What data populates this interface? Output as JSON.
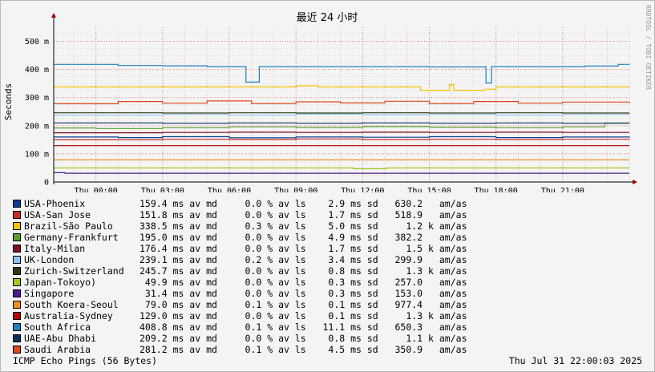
{
  "chart_data": {
    "type": "line",
    "title": "最近 24 小时",
    "ylabel": "Seconds",
    "ylim": [
      0,
      550
    ],
    "yticks": [
      {
        "value": 0,
        "label": "0"
      },
      {
        "value": 100,
        "label": "100 m"
      },
      {
        "value": 200,
        "label": "200 m"
      },
      {
        "value": 300,
        "label": "300 m"
      },
      {
        "value": 400,
        "label": "400 m"
      },
      {
        "value": 500,
        "label": "500 m"
      }
    ],
    "x_range_hours": [
      -1.9,
      24
    ],
    "xticks": [
      {
        "hour": 0,
        "label": "Thu 00:00"
      },
      {
        "hour": 3,
        "label": "Thu 03:00"
      },
      {
        "hour": 6,
        "label": "Thu 06:00"
      },
      {
        "hour": 9,
        "label": "Thu 09:00"
      },
      {
        "hour": 12,
        "label": "Thu 12:00"
      },
      {
        "hour": 15,
        "label": "Thu 15:00"
      },
      {
        "hour": 18,
        "label": "Thu 18:00"
      },
      {
        "hour": 21,
        "label": "Thu 21:00"
      }
    ],
    "grid": true,
    "watermark": "RRDTOOL / TOBI OETIKER",
    "series": [
      {
        "name": "USA-Phoenix",
        "color": "#0b3d91",
        "stats": "159.4 ms av md     0.0 % av ls    2.9 ms sd   630.2   am/as",
        "values": [
          [
            -1.9,
            160
          ],
          [
            1,
            158
          ],
          [
            3,
            161
          ],
          [
            6,
            157
          ],
          [
            9,
            160
          ],
          [
            12,
            159
          ],
          [
            15,
            161
          ],
          [
            18,
            158
          ],
          [
            21,
            160
          ],
          [
            24,
            159
          ]
        ]
      },
      {
        "name": "USA-San Jose",
        "color": "#c92a2a",
        "stats": "151.8 ms av md     0.0 % av ls    1.7 ms sd   518.9   am/as",
        "values": [
          [
            -1.9,
            150
          ],
          [
            3,
            152
          ],
          [
            6,
            151
          ],
          [
            9,
            153
          ],
          [
            12,
            151
          ],
          [
            15,
            152
          ],
          [
            18,
            151
          ],
          [
            21,
            152
          ],
          [
            24,
            151
          ]
        ]
      },
      {
        "name": "Brazil-São Paulo",
        "color": "#f2c200",
        "stats": "338.5 ms av md     0.3 % av ls    5.0 ms sd     1.2 k am/as",
        "values": [
          [
            -1.9,
            338
          ],
          [
            8.5,
            338
          ],
          [
            9,
            342
          ],
          [
            10,
            338
          ],
          [
            14.5,
            338
          ],
          [
            14.6,
            326
          ],
          [
            15.8,
            326
          ],
          [
            15.9,
            346
          ],
          [
            16.1,
            326
          ],
          [
            17.5,
            330
          ],
          [
            18,
            338
          ],
          [
            24,
            338
          ]
        ]
      },
      {
        "name": "Germany-Frankfurt",
        "color": "#5a9e2f",
        "stats": "195.0 ms av md     0.0 % av ls    4.9 ms sd   382.2   am/as",
        "values": [
          [
            -1.9,
            192
          ],
          [
            0,
            190
          ],
          [
            3,
            193
          ],
          [
            6,
            196
          ],
          [
            9,
            194
          ],
          [
            12,
            197
          ],
          [
            15,
            195
          ],
          [
            18,
            193
          ],
          [
            21,
            196
          ],
          [
            22.8,
            196
          ],
          [
            22.9,
            210
          ],
          [
            24,
            208
          ]
        ]
      },
      {
        "name": "Italy-Milan",
        "color": "#7a1020",
        "stats": "176.4 ms av md     0.0 % av ls    1.7 ms sd     1.5 k am/as",
        "values": [
          [
            -1.9,
            175
          ],
          [
            3,
            176
          ],
          [
            6,
            177
          ],
          [
            9,
            176
          ],
          [
            12,
            177
          ],
          [
            15,
            176
          ],
          [
            18,
            177
          ],
          [
            21,
            176
          ],
          [
            24,
            176
          ]
        ]
      },
      {
        "name": "UK-London",
        "color": "#8ec5ef",
        "stats": "239.1 ms av md     0.2 % av ls    3.4 ms sd   299.9   am/as",
        "values": [
          [
            -1.9,
            238
          ],
          [
            3,
            240
          ],
          [
            6,
            238
          ],
          [
            9,
            241
          ],
          [
            12,
            239
          ],
          [
            15,
            240
          ],
          [
            18,
            238
          ],
          [
            21,
            240
          ],
          [
            24,
            239
          ]
        ]
      },
      {
        "name": "Zurich-Switzerland",
        "color": "#2d3a12",
        "stats": "245.7 ms av md     0.0 % av ls    0.8 ms sd     1.3 k am/as",
        "values": [
          [
            -1.9,
            246
          ],
          [
            3,
            245
          ],
          [
            6,
            246
          ],
          [
            9,
            245
          ],
          [
            12,
            246
          ],
          [
            15,
            245
          ],
          [
            18,
            246
          ],
          [
            21,
            245
          ],
          [
            24,
            246
          ]
        ]
      },
      {
        "name": "Japan-Tokoyo)",
        "color": "#a5c81c",
        "stats": " 49.9 ms av md     0.0 % av ls    0.3 ms sd   257.0   am/as",
        "values": [
          [
            -1.9,
            50
          ],
          [
            11.5,
            50
          ],
          [
            11.6,
            47
          ],
          [
            13,
            48
          ],
          [
            13.1,
            50
          ],
          [
            24,
            50
          ]
        ]
      },
      {
        "name": "Singapore",
        "color": "#4a1a8c",
        "stats": " 31.4 ms av md     0.0 % av ls    0.3 ms sd   153.0   am/as",
        "values": [
          [
            -1.9,
            33
          ],
          [
            -1.4,
            31
          ],
          [
            24,
            31
          ]
        ]
      },
      {
        "name": "South Koera-Seoul",
        "color": "#f28c1b",
        "stats": " 79.0 ms av md     0.1 % av ls    0.1 ms sd   977.4   am/as",
        "values": [
          [
            -1.9,
            79
          ],
          [
            24,
            79
          ]
        ]
      },
      {
        "name": "Australia-Sydney",
        "color": "#b00000",
        "stats": "129.0 ms av md     0.0 % av ls    0.1 ms sd     1.3 k am/as",
        "values": [
          [
            -1.9,
            129
          ],
          [
            24,
            129
          ]
        ]
      },
      {
        "name": "South Africa",
        "color": "#1f7fbf",
        "stats": "408.8 ms av md     0.1 % av ls   11.1 ms sd   650.3   am/as",
        "values": [
          [
            -1.9,
            418
          ],
          [
            1,
            414
          ],
          [
            3,
            413
          ],
          [
            5,
            410
          ],
          [
            6.7,
            410
          ],
          [
            6.75,
            355
          ],
          [
            7.3,
            355
          ],
          [
            7.35,
            410
          ],
          [
            12,
            410
          ],
          [
            15,
            409
          ],
          [
            17.5,
            410
          ],
          [
            17.55,
            352
          ],
          [
            17.75,
            352
          ],
          [
            17.8,
            410
          ],
          [
            20,
            410
          ],
          [
            22,
            412
          ],
          [
            23.5,
            418
          ],
          [
            24,
            420
          ]
        ]
      },
      {
        "name": "UAE-Abu Dhabi",
        "color": "#0a2e5c",
        "stats": "209.2 ms av md     0.0 % av ls    0.8 ms sd     1.1 k am/as",
        "values": [
          [
            -1.9,
            210
          ],
          [
            3,
            209
          ],
          [
            6,
            210
          ],
          [
            9,
            209
          ],
          [
            12,
            210
          ],
          [
            15,
            209
          ],
          [
            18,
            210
          ],
          [
            21,
            209
          ],
          [
            24,
            209
          ]
        ]
      },
      {
        "name": "Saudi Arabia",
        "color": "#e0461c",
        "stats": "281.2 ms av md     0.1 % av ls    4.5 ms sd   350.9   am/as",
        "values": [
          [
            -1.9,
            278
          ],
          [
            1,
            286
          ],
          [
            3,
            280
          ],
          [
            5,
            288
          ],
          [
            7,
            279
          ],
          [
            9,
            285
          ],
          [
            11,
            281
          ],
          [
            13,
            287
          ],
          [
            15,
            279
          ],
          [
            17,
            286
          ],
          [
            19,
            280
          ],
          [
            21,
            284
          ],
          [
            24,
            280
          ]
        ]
      }
    ]
  },
  "footer": {
    "left": "ICMP Echo Pings (56 Bytes)",
    "right": "Thu Jul 31 22:00:03 2025"
  }
}
